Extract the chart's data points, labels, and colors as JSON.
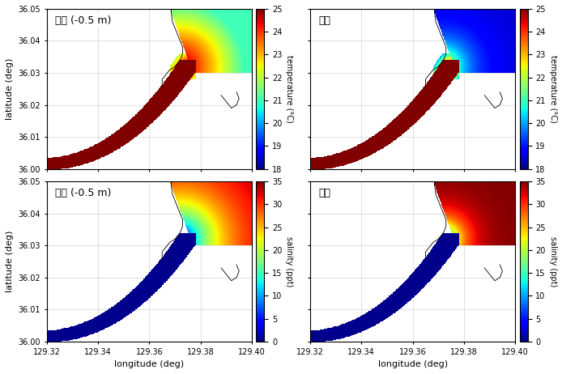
{
  "lon_range": [
    129.32,
    129.4
  ],
  "lat_range": [
    36.0,
    36.05
  ],
  "lon_ticks": [
    129.32,
    129.34,
    129.36,
    129.38,
    129.4
  ],
  "lat_ticks": [
    36.0,
    36.01,
    36.02,
    36.03,
    36.04,
    36.05
  ],
  "xlabel": "longitude (deg)",
  "ylabel": "latitude (deg)",
  "temp_vmin": 18,
  "temp_vmax": 25,
  "temp_ticks": [
    18,
    19,
    20,
    21,
    22,
    23,
    24,
    25
  ],
  "temp_label": "temperature (°C)",
  "sal_vmin": 0,
  "sal_vmax": 35,
  "sal_ticks": [
    0,
    5,
    10,
    15,
    20,
    25,
    30,
    35
  ],
  "sal_label": "salinity (ppt)",
  "panel_labels": [
    "표층 (-0.5 m)",
    "바닥",
    "표층 (-0.5 m)",
    "바닥"
  ],
  "bg_color": "#ffffff",
  "font_size": 9
}
